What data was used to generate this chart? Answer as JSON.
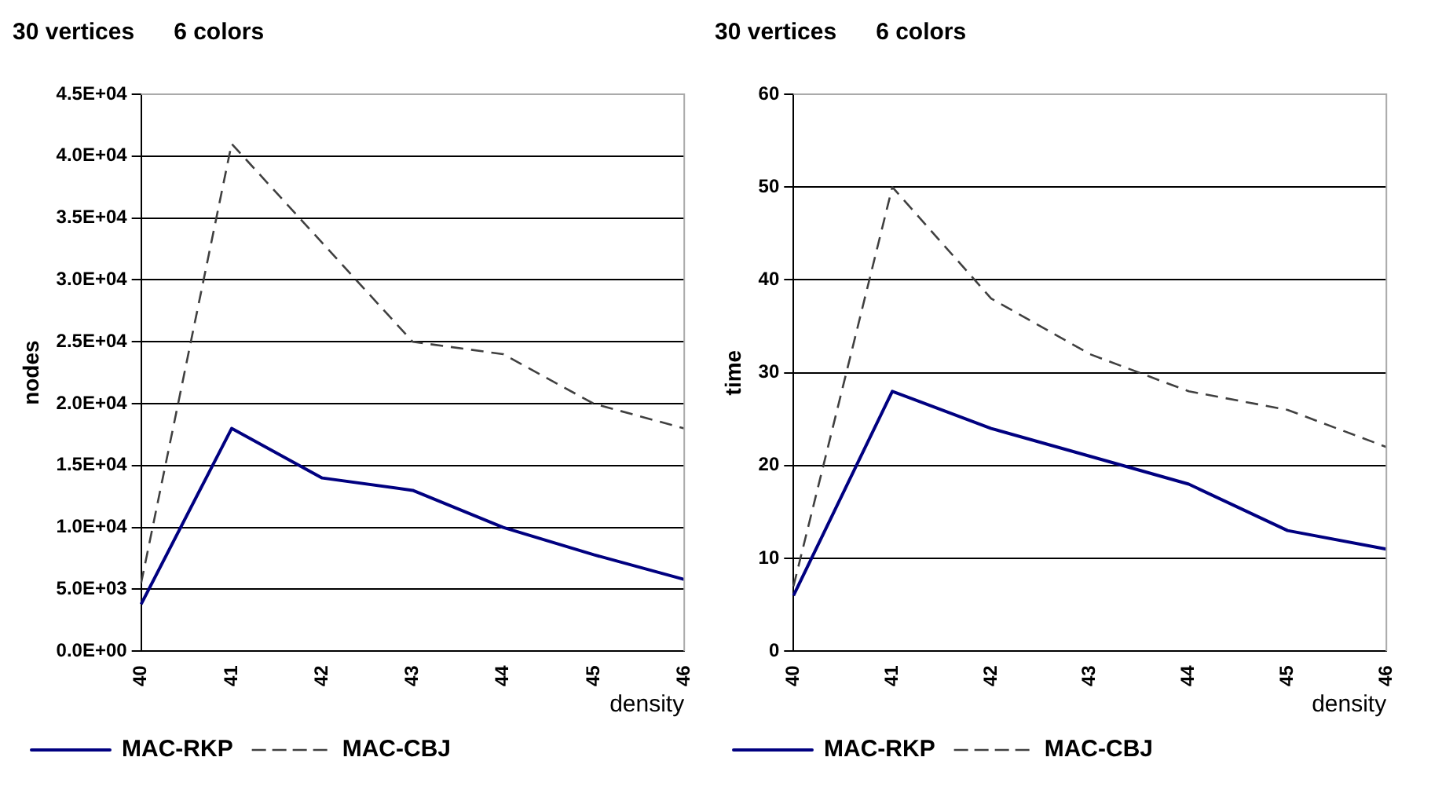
{
  "chart_data": [
    {
      "type": "line",
      "title": "30 vertices      6 colors",
      "xlabel": "density",
      "ylabel": "nodes",
      "categories": [
        "40",
        "41",
        "42",
        "43",
        "44",
        "45",
        "46"
      ],
      "series": [
        {
          "name": "MAC-RKP",
          "color": "#000080",
          "line_style": "solid",
          "values": [
            3800,
            18000,
            14000,
            13000,
            10000,
            7800,
            5800
          ]
        },
        {
          "name": "MAC-CBJ",
          "color": "#404040",
          "line_style": "dashed",
          "values": [
            5500,
            41000,
            33000,
            25000,
            24000,
            20000,
            18000
          ]
        }
      ],
      "ylim": [
        0,
        45000
      ],
      "yticks": [
        {
          "value": 0,
          "label": "0.0E+00"
        },
        {
          "value": 5000,
          "label": "5.0E+03"
        },
        {
          "value": 10000,
          "label": "1.0E+04"
        },
        {
          "value": 15000,
          "label": "1.5E+04"
        },
        {
          "value": 20000,
          "label": "2.0E+04"
        },
        {
          "value": 25000,
          "label": "2.5E+04"
        },
        {
          "value": 30000,
          "label": "3.0E+04"
        },
        {
          "value": 35000,
          "label": "3.5E+04"
        },
        {
          "value": 40000,
          "label": "4.0E+04"
        },
        {
          "value": 45000,
          "label": "4.5E+04"
        }
      ],
      "grid": "y",
      "legend": "bottom",
      "marker": "none"
    },
    {
      "type": "line",
      "title": "30 vertices      6 colors",
      "xlabel": "density",
      "ylabel": "time",
      "categories": [
        "40",
        "41",
        "42",
        "43",
        "44",
        "45",
        "46"
      ],
      "series": [
        {
          "name": "MAC-RKP",
          "color": "#000080",
          "line_style": "solid",
          "values": [
            6,
            28,
            24,
            21,
            18,
            13,
            11
          ]
        },
        {
          "name": "MAC-CBJ",
          "color": "#404040",
          "line_style": "dashed",
          "values": [
            7,
            50,
            38,
            32,
            28,
            26,
            22
          ]
        }
      ],
      "ylim": [
        0,
        60
      ],
      "yticks": [
        0,
        10,
        20,
        30,
        40,
        50,
        60
      ],
      "grid": "y",
      "legend": "bottom",
      "marker": "none"
    }
  ]
}
